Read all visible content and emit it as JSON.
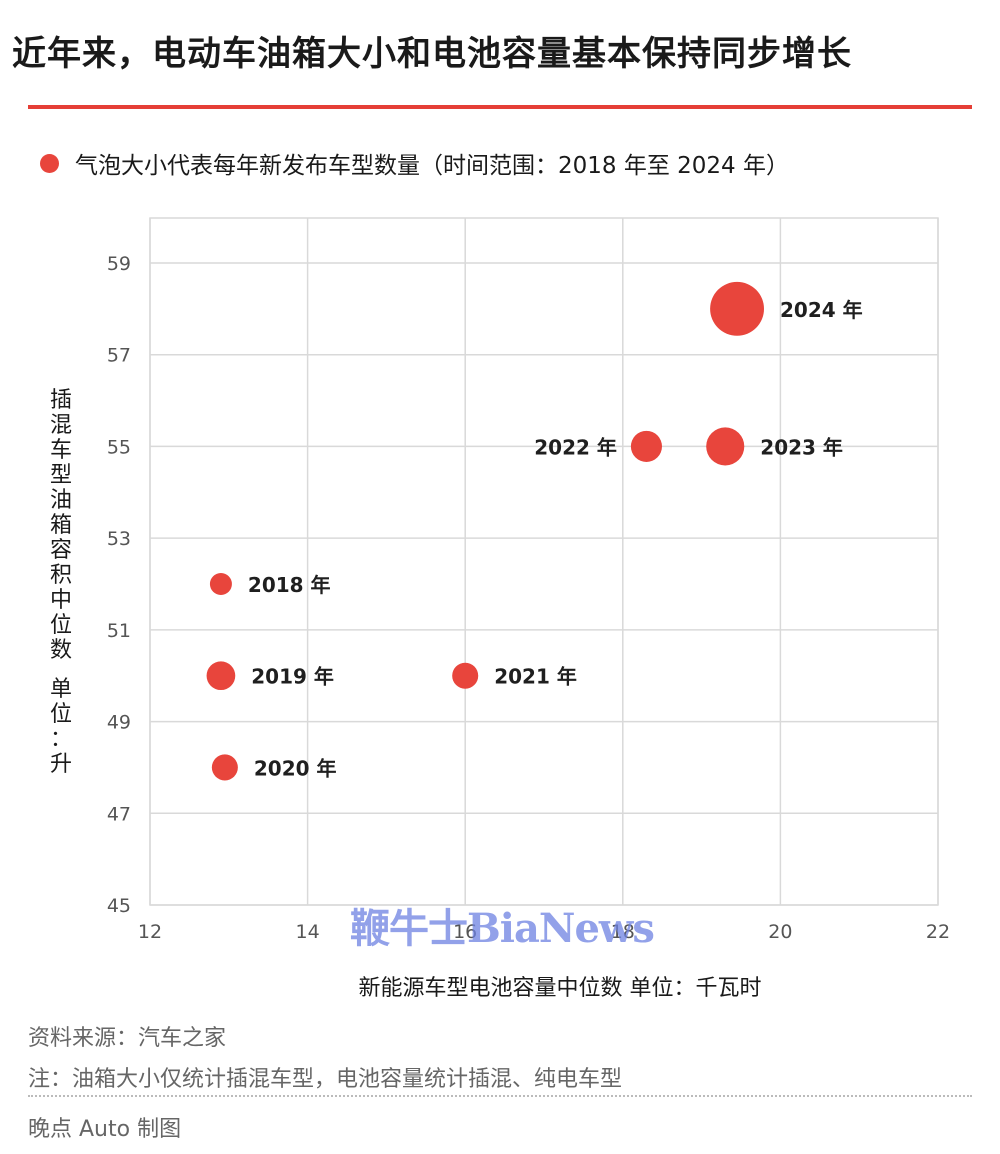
{
  "title": "近年来，电动车油箱大小和电池容量基本保持同步增长",
  "legend_label": "气泡大小代表每年新发布车型数量（时间范围：2018 年至 2024 年）",
  "watermark_text": "鞭牛士BiaNews",
  "footer": {
    "source": "资料来源：汽车之家",
    "note": "注：油箱大小仅统计插混车型，电池容量统计插混、纯电车型",
    "credit": "晚点 Auto 制图"
  },
  "colors": {
    "accent": "#e53e36",
    "bubble": "#e8453c",
    "grid": "#d9d9d9",
    "tick": "#555555"
  },
  "chart_data": {
    "type": "scatter",
    "title": "近年来，电动车油箱大小和电池容量基本保持同步增长",
    "xlabel": "新能源车型电池容量中位数  单位：千瓦时",
    "ylabel": [
      "插",
      "混",
      "车",
      "型",
      "油",
      "箱",
      "容",
      "积",
      "中",
      "位",
      "数",
      "",
      "单",
      "位",
      "：",
      "升"
    ],
    "xlim": [
      12,
      22
    ],
    "ylim": [
      45,
      60
    ],
    "x_ticks": [
      12,
      14,
      16,
      18,
      20,
      22
    ],
    "y_ticks": [
      45,
      47,
      49,
      51,
      53,
      55,
      57,
      59
    ],
    "grid": true,
    "points": [
      {
        "label": "2018 年",
        "x": 12.9,
        "y": 52,
        "size": 1,
        "label_side": "right"
      },
      {
        "label": "2019 年",
        "x": 12.9,
        "y": 50,
        "size": 1.7,
        "label_side": "right"
      },
      {
        "label": "2020 年",
        "x": 12.95,
        "y": 48,
        "size": 1.4,
        "label_side": "right"
      },
      {
        "label": "2021 年",
        "x": 16.0,
        "y": 50,
        "size": 1.4,
        "label_side": "right"
      },
      {
        "label": "2022 年",
        "x": 18.3,
        "y": 55,
        "size": 2.0,
        "label_side": "left"
      },
      {
        "label": "2023 年",
        "x": 19.3,
        "y": 55,
        "size": 3.0,
        "label_side": "right"
      },
      {
        "label": "2024 年",
        "x": 19.45,
        "y": 58,
        "size": 6.0,
        "label_side": "right"
      }
    ]
  }
}
